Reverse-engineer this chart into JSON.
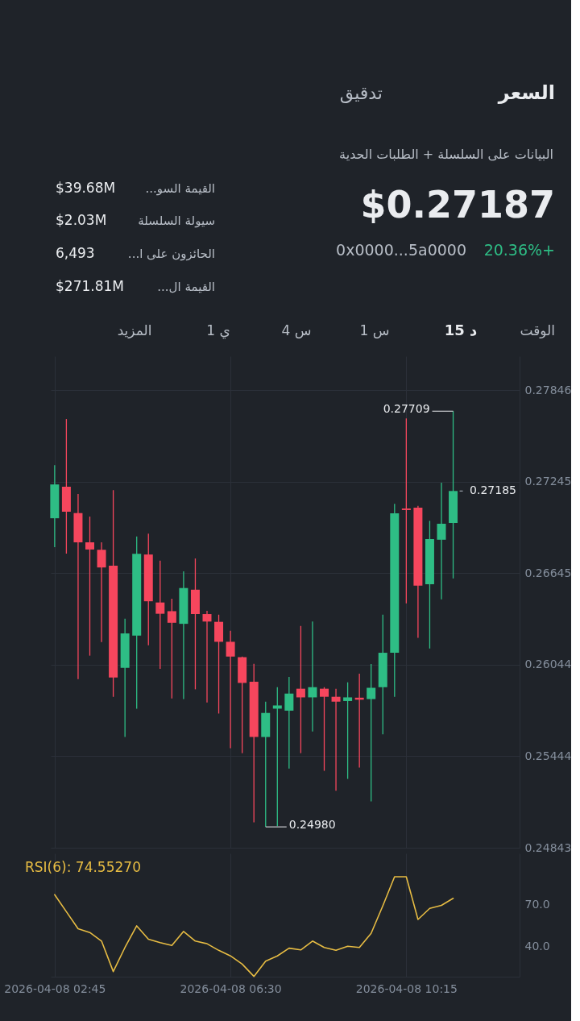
{
  "chart_data": [
    {
      "type": "candlestick",
      "x": [
        "2026-04-08T02:45",
        "2026-04-08T03:00",
        "2026-04-08T03:15",
        "2026-04-08T03:30",
        "2026-04-08T03:45",
        "2026-04-08T04:00",
        "2026-04-08T04:15",
        "2026-04-08T04:30",
        "2026-04-08T04:45",
        "2026-04-08T05:00",
        "2026-04-08T05:15",
        "2026-04-08T05:30",
        "2026-04-08T05:45",
        "2026-04-08T06:00",
        "2026-04-08T06:15",
        "2026-04-08T06:30",
        "2026-04-08T06:45",
        "2026-04-08T07:00",
        "2026-04-08T07:15",
        "2026-04-08T07:30",
        "2026-04-08T07:45",
        "2026-04-08T08:00",
        "2026-04-08T08:15",
        "2026-04-08T08:30",
        "2026-04-08T08:45",
        "2026-04-08T09:00",
        "2026-04-08T09:15",
        "2026-04-08T09:30",
        "2026-04-08T09:45",
        "2026-04-08T10:00",
        "2026-04-08T10:15",
        "2026-04-08T10:30",
        "2026-04-08T10:45",
        "2026-04-08T11:00",
        "2026-04-08T11:15"
      ],
      "ohlc": [
        [
          0.27006,
          0.27355,
          0.26816,
          0.27228
        ],
        [
          0.27213,
          0.27657,
          0.26774,
          0.27049
        ],
        [
          0.2704,
          0.27165,
          0.2595,
          0.26848
        ],
        [
          0.26848,
          0.27017,
          0.26104,
          0.26801
        ],
        [
          0.26799,
          0.26848,
          0.26193,
          0.26683
        ],
        [
          0.26694,
          0.2719,
          0.25834,
          0.25961
        ],
        [
          0.26024,
          0.26347,
          0.2557,
          0.2625
        ],
        [
          0.26235,
          0.26886,
          0.25756,
          0.26772
        ],
        [
          0.26768,
          0.26905,
          0.26172,
          0.26461
        ],
        [
          0.26453,
          0.26727,
          0.26018,
          0.26379
        ],
        [
          0.26396,
          0.26478,
          0.25823,
          0.2632
        ],
        [
          0.26313,
          0.26658,
          0.25819,
          0.26548
        ],
        [
          0.26537,
          0.26742,
          0.25883,
          0.26377
        ],
        [
          0.26377,
          0.26398,
          0.25796,
          0.26328
        ],
        [
          0.26326,
          0.26373,
          0.25724,
          0.26195
        ],
        [
          0.26195,
          0.26267,
          0.25496,
          0.26098
        ],
        [
          0.26094,
          0.26098,
          0.25464,
          0.25925
        ],
        [
          0.25933,
          0.26051,
          0.2501,
          0.2557
        ],
        [
          0.2557,
          0.25802,
          0.2498,
          0.25728
        ],
        [
          0.25756,
          0.25897,
          0.24985,
          0.25777
        ],
        [
          0.25743,
          0.25965,
          0.25363,
          0.25855
        ],
        [
          0.25887,
          0.26299,
          0.25464,
          0.2583
        ],
        [
          0.2583,
          0.26328,
          0.25606,
          0.25897
        ],
        [
          0.25887,
          0.25897,
          0.25348,
          0.25834
        ],
        [
          0.25834,
          0.25887,
          0.25217,
          0.25802
        ],
        [
          0.25806,
          0.25929,
          0.25295,
          0.2583
        ],
        [
          0.25828,
          0.25986,
          0.25369,
          0.25815
        ],
        [
          0.25819,
          0.26049,
          0.25147,
          0.25893
        ],
        [
          0.25897,
          0.26373,
          0.25587,
          0.26123
        ],
        [
          0.26123,
          0.27101,
          0.25834,
          0.27038
        ],
        [
          0.2707,
          0.27661,
          0.26447,
          0.2706
        ],
        [
          0.27076,
          0.27087,
          0.26221,
          0.26563
        ],
        [
          0.26573,
          0.26989,
          0.26151,
          0.26869
        ],
        [
          0.26865,
          0.27239,
          0.26474,
          0.2697
        ],
        [
          0.26975,
          0.27709,
          0.26611,
          0.27185
        ]
      ],
      "colors": [
        "#2ebd85",
        "#f6465d",
        "#f6465d",
        "#f6465d",
        "#f6465d",
        "#f6465d",
        "#2ebd85",
        "#2ebd85",
        "#f6465d",
        "#f6465d",
        "#f6465d",
        "#2ebd85",
        "#f6465d",
        "#f6465d",
        "#f6465d",
        "#f6465d",
        "#f6465d",
        "#f6465d",
        "#2ebd85",
        "#2ebd85",
        "#2ebd85",
        "#f6465d",
        "#2ebd85",
        "#f6465d",
        "#f6465d",
        "#2ebd85",
        "#f6465d",
        "#2ebd85",
        "#2ebd85",
        "#2ebd85",
        "#f6465d",
        "#f6465d",
        "#2ebd85",
        "#2ebd85",
        "#2ebd85"
      ],
      "xlim": [
        "2026-04-08T02:40",
        "2026-04-08T12:40"
      ],
      "xticks": [
        {
          "value": "2026-04-08T02:45",
          "label": null
        },
        {
          "value": "2026-04-08T06:30",
          "label": null
        },
        {
          "value": "2026-04-08T10:15",
          "label": null
        }
      ],
      "ylim": [
        0.24843,
        0.2807
      ],
      "yticks": [
        0.27846,
        0.27245,
        0.26645,
        0.26044,
        0.25444,
        0.24843
      ],
      "grid": true,
      "tick_labels": "y",
      "annotations": [
        "السعر",
        "تدقيق",
        "البيانات على السلسلة + الطلبات الحدية",
        "$0.27187",
        "0x0000...5a0000",
        "20.36%+",
        "...القيمة السو",
        "$39.68M",
        "سيولة السلسلة",
        "$2.03M",
        "...الحائزون على ا",
        "6,493",
        "...القيمة ال",
        "$271.81M",
        "الوقت",
        "15 د",
        "1 س",
        "4 س",
        "1 ي",
        "المزيد",
        {
          "text": "0.27709",
          "x": "2026-04-08T11:15",
          "y": 0.27709
        },
        {
          "text": "0.24980",
          "x": "2026-04-08T07:15",
          "y": 0.2498
        }
      ],
      "ref_lines": [
        {
          "axis": "y",
          "value": 0.27185,
          "label": "0.27185",
          "line_style": "dashed",
          "color": "#b7bdc6"
        }
      ]
    },
    {
      "type": "line",
      "title": "RSI(6): 74.55270",
      "x": [
        "2026-04-08T02:45",
        "2026-04-08T03:00",
        "2026-04-08T03:15",
        "2026-04-08T03:30",
        "2026-04-08T03:45",
        "2026-04-08T04:00",
        "2026-04-08T04:15",
        "2026-04-08T04:30",
        "2026-04-08T04:45",
        "2026-04-08T05:00",
        "2026-04-08T05:15",
        "2026-04-08T05:30",
        "2026-04-08T05:45",
        "2026-04-08T06:00",
        "2026-04-08T06:15",
        "2026-04-08T06:30",
        "2026-04-08T06:45",
        "2026-04-08T07:00",
        "2026-04-08T07:15",
        "2026-04-08T07:30",
        "2026-04-08T07:45",
        "2026-04-08T08:00",
        "2026-04-08T08:15",
        "2026-04-08T08:30",
        "2026-04-08T08:45",
        "2026-04-08T09:00",
        "2026-04-08T09:15",
        "2026-04-08T09:30",
        "2026-04-08T09:45",
        "2026-04-08T10:00",
        "2026-04-08T10:15",
        "2026-04-08T10:30",
        "2026-04-08T10:45",
        "2026-04-08T11:00",
        "2026-04-08T11:15"
      ],
      "series": [
        {
          "color": "#e7bc43",
          "values": [
            77.2,
            64.9,
            52.6,
            49.9,
            43.7,
            21.7,
            39.1,
            54.7,
            45.0,
            42.6,
            40.5,
            50.7,
            43.7,
            41.8,
            37.0,
            33.0,
            27.1,
            18.2,
            29.2,
            33.0,
            38.6,
            37.3,
            43.7,
            39.1,
            37.0,
            40.0,
            39.1,
            49.3,
            69.2,
            90.1,
            90.1,
            59.3,
            67.3,
            69.5,
            74.5527
          ]
        }
      ],
      "xlim": [
        "2026-04-08T02:40",
        "2026-04-08T12:40"
      ],
      "xticks": [
        {
          "value": "2026-04-08T02:45",
          "label": "2026-04-08 02:45"
        },
        {
          "value": "2026-04-08T06:30",
          "label": "2026-04-08 06:30"
        },
        {
          "value": "2026-04-08T10:15",
          "label": "2026-04-08 10:15"
        }
      ],
      "ylim": [
        18,
        107
      ],
      "yticks": [
        {
          "value": 70,
          "label": "70.0"
        },
        {
          "value": 40,
          "label": "40.0"
        }
      ],
      "grid": "x"
    }
  ]
}
